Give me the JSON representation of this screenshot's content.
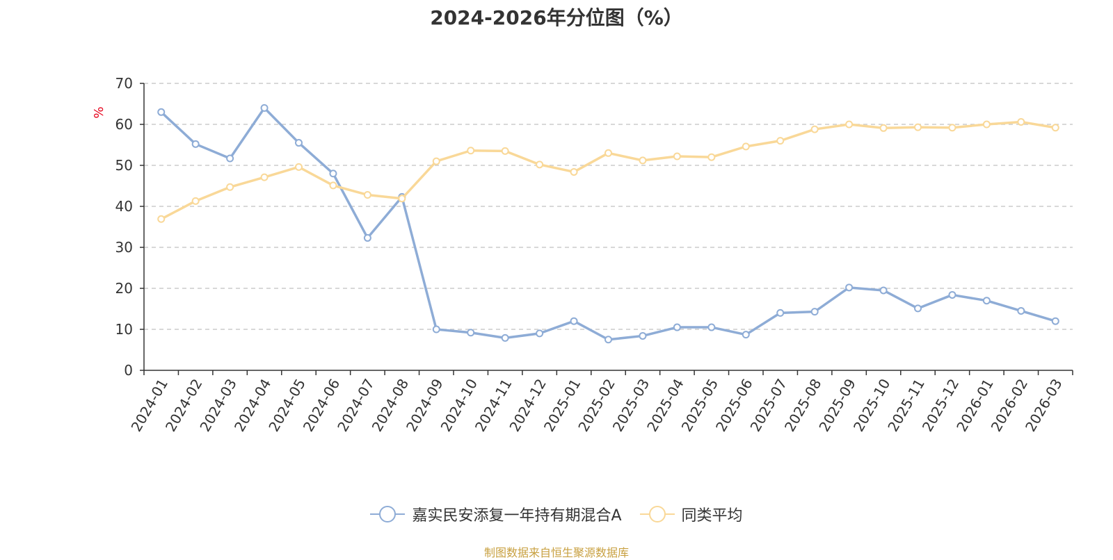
{
  "chart_data": {
    "type": "line",
    "title": "2024-2026年分位图（%）",
    "ylabel": "%",
    "ylim": [
      0,
      70
    ],
    "yticks": [
      0,
      10,
      20,
      30,
      40,
      50,
      60,
      70
    ],
    "grid": true,
    "legend_position": "bottom",
    "categories": [
      "2024-01",
      "2024-02",
      "2024-03",
      "2024-04",
      "2024-05",
      "2024-06",
      "2024-07",
      "2024-08",
      "2024-09",
      "2024-10",
      "2024-11",
      "2024-12",
      "2025-01",
      "2025-02",
      "2025-03",
      "2025-04",
      "2025-05",
      "2025-06",
      "2025-07",
      "2025-08",
      "2025-09",
      "2025-10",
      "2025-11",
      "2025-12",
      "2026-01",
      "2026-02",
      "2026-03"
    ],
    "series": [
      {
        "name": "嘉实民安添复一年持有期混合A",
        "color": "#8eacd6",
        "values": [
          63.0,
          55.2,
          51.7,
          64.0,
          55.5,
          48.0,
          32.3,
          42.3,
          10.0,
          9.2,
          7.9,
          9.0,
          12.0,
          7.5,
          8.4,
          10.5,
          10.5,
          8.7,
          14.0,
          14.3,
          20.2,
          19.5,
          15.1,
          18.4,
          17.0,
          14.5,
          12.0
        ]
      },
      {
        "name": "同类平均",
        "color": "#f9d898",
        "values": [
          36.9,
          41.3,
          44.7,
          47.1,
          49.6,
          45.1,
          42.8,
          41.9,
          51.0,
          53.6,
          53.5,
          50.2,
          48.4,
          53.0,
          51.2,
          52.2,
          52.0,
          54.6,
          56.0,
          58.8,
          60.0,
          59.1,
          59.3,
          59.2,
          60.0,
          60.6,
          59.2
        ]
      }
    ]
  },
  "source_text": "制图数据来自恒生聚源数据库"
}
